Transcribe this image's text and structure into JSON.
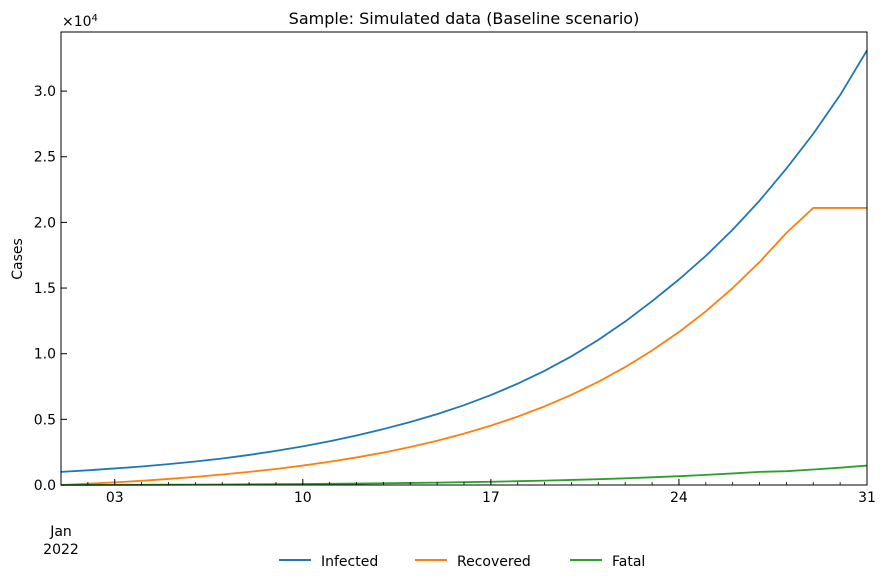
{
  "chart_data": {
    "type": "line",
    "title": "Sample: Simulated data (Baseline scenario)",
    "xlabel": "",
    "ylabel": "Cases",
    "y_multiplier_label": "×10",
    "y_multiplier_exponent": "4",
    "x_start": "2022-01-01",
    "x_end": "2022-01-31",
    "xlim": [
      "2022-01-01",
      "2022-01-31"
    ],
    "ylim": [
      0,
      34500
    ],
    "x_ticks": [
      {
        "date": "2022-01-03",
        "label": "03"
      },
      {
        "date": "2022-01-10",
        "label": "10"
      },
      {
        "date": "2022-01-17",
        "label": "17"
      },
      {
        "date": "2022-01-24",
        "label": "24"
      },
      {
        "date": "2022-01-31",
        "label": "31"
      }
    ],
    "x_month_label": "Jan",
    "x_year_label": "2022",
    "y_ticks": [
      {
        "value": 0,
        "label": "0.0"
      },
      {
        "value": 5000,
        "label": "0.5"
      },
      {
        "value": 10000,
        "label": "1.0"
      },
      {
        "value": 15000,
        "label": "1.5"
      },
      {
        "value": 20000,
        "label": "2.0"
      },
      {
        "value": 25000,
        "label": "2.5"
      },
      {
        "value": 30000,
        "label": "3.0"
      }
    ],
    "grid": false,
    "legend_position": "bottom-center",
    "series": [
      {
        "name": "Infected",
        "color": "#1f77b4",
        "x": [
          "2022-01-01",
          "2022-01-02",
          "2022-01-03",
          "2022-01-04",
          "2022-01-05",
          "2022-01-06",
          "2022-01-07",
          "2022-01-08",
          "2022-01-09",
          "2022-01-10",
          "2022-01-11",
          "2022-01-12",
          "2022-01-13",
          "2022-01-14",
          "2022-01-15",
          "2022-01-16",
          "2022-01-17",
          "2022-01-18",
          "2022-01-19",
          "2022-01-20",
          "2022-01-21",
          "2022-01-22",
          "2022-01-23",
          "2022-01-24",
          "2022-01-25",
          "2022-01-26",
          "2022-01-27",
          "2022-01-28",
          "2022-01-29",
          "2022-01-30",
          "2022-01-31"
        ],
        "values": [
          1000,
          1120,
          1260,
          1410,
          1590,
          1790,
          2020,
          2290,
          2600,
          2940,
          3330,
          3770,
          4260,
          4800,
          5400,
          6080,
          6850,
          7720,
          8700,
          9800,
          11050,
          12450,
          14000,
          15650,
          17450,
          19450,
          21650,
          24100,
          26750,
          29700,
          33100
        ]
      },
      {
        "name": "Recovered",
        "color": "#ff7f0e",
        "x": [
          "2022-01-01",
          "2022-01-02",
          "2022-01-03",
          "2022-01-04",
          "2022-01-05",
          "2022-01-06",
          "2022-01-07",
          "2022-01-08",
          "2022-01-09",
          "2022-01-10",
          "2022-01-11",
          "2022-01-12",
          "2022-01-13",
          "2022-01-14",
          "2022-01-15",
          "2022-01-16",
          "2022-01-17",
          "2022-01-18",
          "2022-01-19",
          "2022-01-20",
          "2022-01-21",
          "2022-01-22",
          "2022-01-23",
          "2022-01-24",
          "2022-01-25",
          "2022-01-26",
          "2022-01-27",
          "2022-01-28",
          "2022-01-29",
          "2022-01-30",
          "2022-01-31"
        ],
        "values": [
          0,
          100,
          200,
          320,
          460,
          620,
          800,
          1000,
          1220,
          1480,
          1770,
          2100,
          2470,
          2890,
          3370,
          3910,
          4520,
          5210,
          5990,
          6870,
          7860,
          8980,
          10240,
          11650,
          13230,
          15000,
          16980,
          19200,
          21100,
          21100,
          21100
        ]
      },
      {
        "name": "Fatal",
        "color": "#2ca02c",
        "x": [
          "2022-01-01",
          "2022-01-02",
          "2022-01-03",
          "2022-01-04",
          "2022-01-05",
          "2022-01-06",
          "2022-01-07",
          "2022-01-08",
          "2022-01-09",
          "2022-01-10",
          "2022-01-11",
          "2022-01-12",
          "2022-01-13",
          "2022-01-14",
          "2022-01-15",
          "2022-01-16",
          "2022-01-17",
          "2022-01-18",
          "2022-01-19",
          "2022-01-20",
          "2022-01-21",
          "2022-01-22",
          "2022-01-23",
          "2022-01-24",
          "2022-01-25",
          "2022-01-26",
          "2022-01-27",
          "2022-01-28",
          "2022-01-29",
          "2022-01-30",
          "2022-01-31"
        ],
        "values": [
          0,
          5,
          10,
          16,
          23,
          31,
          40,
          51,
          63,
          77,
          93,
          111,
          132,
          156,
          183,
          214,
          249,
          289,
          334,
          386,
          444,
          511,
          586,
          672,
          770,
          880,
          1000,
          1050,
          1180,
          1320,
          1480
        ]
      }
    ]
  }
}
